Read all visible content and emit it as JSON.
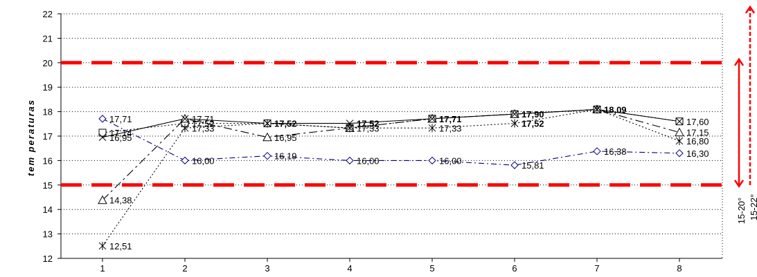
{
  "chart_data": {
    "type": "line",
    "title": "",
    "xlabel": "",
    "ylabel": "tem peraturas",
    "x": [
      1,
      2,
      3,
      4,
      5,
      6,
      7,
      8
    ],
    "ylim": [
      12,
      22
    ],
    "yticks": [
      12,
      13,
      14,
      15,
      16,
      17,
      18,
      19,
      20,
      21,
      22
    ],
    "grid": "horizontal dotted",
    "legend": "none",
    "series": [
      {
        "marker": "diamond",
        "line": "dash-dot",
        "color": "#000080",
        "values": [
          17.71,
          16.0,
          16.19,
          16.0,
          16.0,
          15.81,
          16.38,
          16.3
        ],
        "labels": [
          "17,71",
          "16,00",
          "16,19",
          "16,00",
          "16,00",
          "15,81",
          "16,38",
          "16,30"
        ]
      },
      {
        "marker": "square",
        "line": "dotted",
        "color": "#000000",
        "values": [
          17.14,
          17.52,
          17.52,
          17.33,
          17.71,
          17.9,
          18.09,
          17.6
        ],
        "labels": [
          "17,14",
          "17,52",
          "17,52",
          "17,33",
          "17,71",
          "17,90",
          "18,09",
          "17,60"
        ]
      },
      {
        "marker": "triangle",
        "line": "long-dash",
        "color": "#000000",
        "values": [
          14.38,
          17.71,
          16.95,
          17.33,
          17.71,
          17.9,
          18.09,
          17.15
        ],
        "labels": [
          "14,38",
          "17,71",
          "16,95",
          "17,33",
          "17,71",
          "17,90",
          "18,09",
          "17,15"
        ]
      },
      {
        "marker": "x",
        "line": "solid",
        "color": "#000000",
        "values": [
          16.95,
          17.71,
          17.52,
          17.52,
          17.71,
          17.9,
          18.09,
          17.6
        ],
        "labels": [
          "16,95",
          "17,71",
          "17,52",
          "17,52",
          "17,71",
          "17,90",
          "18,09",
          "17,60"
        ]
      },
      {
        "marker": "star",
        "line": "dotted",
        "color": "#000000",
        "values": [
          12.51,
          17.33,
          17.52,
          17.33,
          17.33,
          17.52,
          18.09,
          16.8
        ],
        "labels": [
          "12,51",
          "17,33",
          "17,52",
          "17,33",
          "17,33",
          "17,52",
          "18,09",
          "16,80"
        ]
      }
    ],
    "reference_lines": [
      {
        "y": 20,
        "color": "#ff0000",
        "style": "long-dash"
      },
      {
        "y": 15,
        "color": "#ff0000",
        "style": "long-dash"
      }
    ],
    "annotations": {
      "range_label": "15-20°",
      "range_label_2": "15-22°",
      "arrow_color": "#ff0000"
    }
  }
}
